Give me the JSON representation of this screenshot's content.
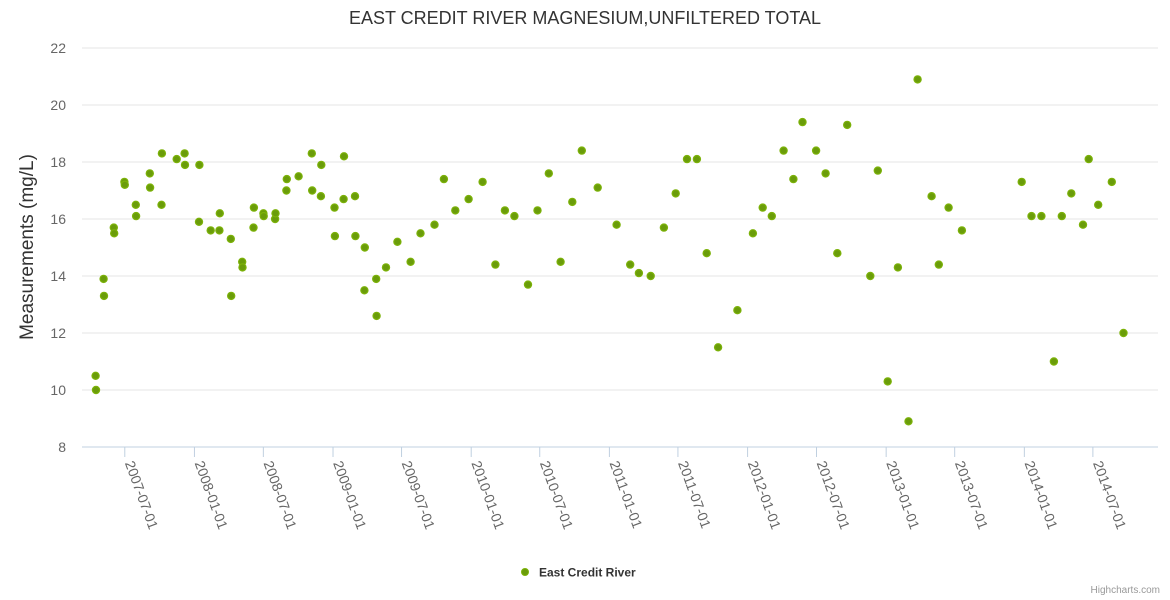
{
  "chart_data": {
    "type": "scatter",
    "title": "EAST CREDIT RIVER MAGNESIUM,UNFILTERED TOTAL",
    "ylabel": "Measurements (mg/L)",
    "xlabel": "",
    "ylim": [
      8,
      22
    ],
    "yticks": [
      8,
      10,
      12,
      14,
      16,
      18,
      20,
      22
    ],
    "xticks": [
      "2007-07-01",
      "2008-01-01",
      "2008-07-01",
      "2009-01-01",
      "2009-07-01",
      "2010-01-01",
      "2010-07-01",
      "2011-01-01",
      "2011-07-01",
      "2012-01-01",
      "2012-07-01",
      "2013-01-01",
      "2013-07-01",
      "2014-01-01",
      "2014-07-01"
    ],
    "xlim": [
      "2007-03-10",
      "2014-12-20"
    ],
    "grid": "horizontal",
    "legend_position": "bottom-center",
    "series": [
      {
        "name": "East Credit River",
        "color": "#7cb209",
        "marker_fill": "#6a9c0a",
        "points": [
          [
            "2007-04-15",
            10.5
          ],
          [
            "2007-04-16",
            10.0
          ],
          [
            "2007-05-06",
            13.9
          ],
          [
            "2007-05-07",
            13.3
          ],
          [
            "2007-06-02",
            15.7
          ],
          [
            "2007-06-03",
            15.5
          ],
          [
            "2007-06-30",
            17.3
          ],
          [
            "2007-07-01",
            17.2
          ],
          [
            "2007-07-30",
            16.5
          ],
          [
            "2007-07-31",
            16.1
          ],
          [
            "2007-09-05",
            17.6
          ],
          [
            "2007-09-06",
            17.1
          ],
          [
            "2007-10-06",
            16.5
          ],
          [
            "2007-10-07",
            18.3
          ],
          [
            "2007-11-15",
            18.1
          ],
          [
            "2007-12-06",
            18.3
          ],
          [
            "2007-12-07",
            17.9
          ],
          [
            "2008-01-13",
            15.9
          ],
          [
            "2008-01-14",
            17.9
          ],
          [
            "2008-02-13",
            15.6
          ],
          [
            "2008-03-07",
            15.6
          ],
          [
            "2008-03-08",
            16.2
          ],
          [
            "2008-04-06",
            15.3
          ],
          [
            "2008-04-07",
            13.3
          ],
          [
            "2008-05-06",
            14.5
          ],
          [
            "2008-05-07",
            14.3
          ],
          [
            "2008-06-05",
            15.7
          ],
          [
            "2008-06-06",
            16.4
          ],
          [
            "2008-07-01",
            16.2
          ],
          [
            "2008-07-02",
            16.1
          ],
          [
            "2008-08-01",
            16.0
          ],
          [
            "2008-08-02",
            16.2
          ],
          [
            "2008-08-31",
            17.0
          ],
          [
            "2008-09-01",
            17.4
          ],
          [
            "2008-10-02",
            17.5
          ],
          [
            "2008-11-06",
            18.3
          ],
          [
            "2008-11-07",
            17.0
          ],
          [
            "2008-11-30",
            16.8
          ],
          [
            "2008-12-01",
            17.9
          ],
          [
            "2009-01-05",
            16.4
          ],
          [
            "2009-01-06",
            15.4
          ],
          [
            "2009-01-29",
            16.7
          ],
          [
            "2009-01-30",
            18.2
          ],
          [
            "2009-02-28",
            16.8
          ],
          [
            "2009-03-01",
            15.4
          ],
          [
            "2009-03-25",
            13.5
          ],
          [
            "2009-03-26",
            15.0
          ],
          [
            "2009-04-25",
            13.9
          ],
          [
            "2009-04-26",
            12.6
          ],
          [
            "2009-05-21",
            14.3
          ],
          [
            "2009-06-20",
            15.2
          ],
          [
            "2009-07-25",
            14.5
          ],
          [
            "2009-08-20",
            15.5
          ],
          [
            "2009-09-26",
            15.8
          ],
          [
            "2009-10-21",
            17.4
          ],
          [
            "2009-11-20",
            16.3
          ],
          [
            "2009-12-25",
            16.7
          ],
          [
            "2010-01-31",
            17.3
          ],
          [
            "2010-03-06",
            14.4
          ],
          [
            "2010-03-31",
            16.3
          ],
          [
            "2010-04-25",
            16.1
          ],
          [
            "2010-05-31",
            13.7
          ],
          [
            "2010-06-25",
            16.3
          ],
          [
            "2010-07-25",
            17.6
          ],
          [
            "2010-08-25",
            14.5
          ],
          [
            "2010-09-25",
            16.6
          ],
          [
            "2010-10-20",
            18.4
          ],
          [
            "2010-12-01",
            17.1
          ],
          [
            "2011-01-20",
            15.8
          ],
          [
            "2011-02-25",
            14.4
          ],
          [
            "2011-03-20",
            14.1
          ],
          [
            "2011-04-20",
            14.0
          ],
          [
            "2011-05-25",
            15.7
          ],
          [
            "2011-06-25",
            16.9
          ],
          [
            "2011-07-25",
            18.1
          ],
          [
            "2011-08-20",
            18.1
          ],
          [
            "2011-09-15",
            14.8
          ],
          [
            "2011-10-15",
            11.5
          ],
          [
            "2011-12-05",
            12.8
          ],
          [
            "2012-01-15",
            15.5
          ],
          [
            "2012-02-10",
            16.4
          ],
          [
            "2012-03-05",
            16.1
          ],
          [
            "2012-04-05",
            18.4
          ],
          [
            "2012-05-01",
            17.4
          ],
          [
            "2012-05-25",
            19.4
          ],
          [
            "2012-06-30",
            18.4
          ],
          [
            "2012-07-25",
            17.6
          ],
          [
            "2012-08-25",
            14.8
          ],
          [
            "2012-09-20",
            19.3
          ],
          [
            "2012-11-20",
            14.0
          ],
          [
            "2012-12-10",
            17.7
          ],
          [
            "2013-01-05",
            10.3
          ],
          [
            "2013-02-01",
            14.3
          ],
          [
            "2013-03-01",
            8.9
          ],
          [
            "2013-03-25",
            20.9
          ],
          [
            "2013-05-01",
            16.8
          ],
          [
            "2013-05-20",
            14.4
          ],
          [
            "2013-06-15",
            16.4
          ],
          [
            "2013-07-20",
            15.6
          ],
          [
            "2013-12-25",
            17.3
          ],
          [
            "2014-01-20",
            16.1
          ],
          [
            "2014-02-15",
            16.1
          ],
          [
            "2014-03-20",
            11.0
          ],
          [
            "2014-04-10",
            16.1
          ],
          [
            "2014-05-05",
            16.9
          ],
          [
            "2014-06-05",
            15.8
          ],
          [
            "2014-06-20",
            18.1
          ],
          [
            "2014-07-15",
            16.5
          ],
          [
            "2014-08-20",
            17.3
          ],
          [
            "2014-09-20",
            12.0
          ]
        ]
      }
    ]
  },
  "credits": "Highcharts.com"
}
